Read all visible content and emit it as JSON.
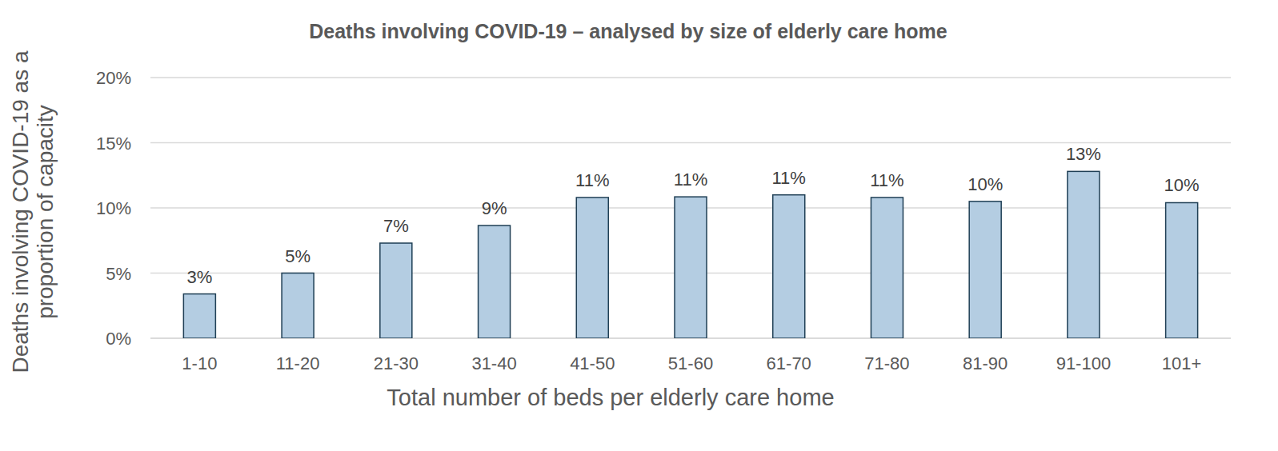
{
  "chart_data": {
    "type": "bar",
    "title": "Deaths involving COVID-19 – analysed by size of elderly care home",
    "x_label": "Total number of beds per elderly care home",
    "y_label": "Deaths involving COVID-19 as a proportion of capacity",
    "categories": [
      "1-10",
      "11-20",
      "21-30",
      "31-40",
      "41-50",
      "51-60",
      "61-70",
      "71-80",
      "81-90",
      "91-100",
      "101+"
    ],
    "values": [
      3.4,
      5.0,
      7.3,
      8.65,
      10.8,
      10.85,
      11.0,
      10.8,
      10.5,
      12.8,
      10.4
    ],
    "value_labels": [
      "3%",
      "5%",
      "7%",
      "9%",
      "11%",
      "11%",
      "11%",
      "11%",
      "10%",
      "13%",
      "10%"
    ],
    "color": "#b4cde2",
    "ylim": [
      0,
      20
    ],
    "yticks": [
      {
        "value": 0,
        "label": "0%"
      },
      {
        "value": 5,
        "label": "5%"
      },
      {
        "value": 10,
        "label": "10%"
      },
      {
        "value": 15,
        "label": "15%"
      },
      {
        "value": 20,
        "label": "20%"
      }
    ],
    "grid": true,
    "data_labels": true
  }
}
